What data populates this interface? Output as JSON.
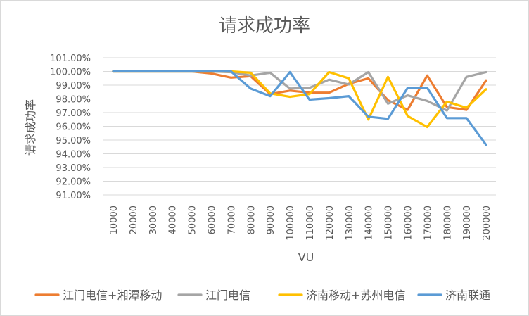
{
  "chart_data": {
    "type": "line",
    "title": "请求成功率",
    "xlabel": "VU",
    "ylabel": "请求成功率",
    "ylim": [
      91,
      101
    ],
    "yticks": [
      "91.00%",
      "92.00%",
      "93.00%",
      "94.00%",
      "95.00%",
      "96.00%",
      "97.00%",
      "98.00%",
      "99.00%",
      "100.00%",
      "101.00%"
    ],
    "grid": true,
    "legend_position": "bottom",
    "categories": [
      "10000",
      "20000",
      "30000",
      "40000",
      "50000",
      "60000",
      "70000",
      "80000",
      "90000",
      "100000",
      "110000",
      "120000",
      "130000",
      "140000",
      "150000",
      "160000",
      "170000",
      "180000",
      "190000",
      "200000"
    ],
    "series": [
      {
        "name": "江门电信+湘潭移动",
        "color": "#ED7D31",
        "values": [
          100,
          100,
          100,
          100,
          100,
          99.85,
          99.55,
          99.65,
          98.35,
          98.6,
          98.45,
          98.45,
          99.1,
          99.5,
          97.9,
          97.2,
          99.7,
          97.4,
          97.2,
          99.35
        ]
      },
      {
        "name": "江门电信",
        "color": "#A5A5A5",
        "values": [
          100,
          100,
          100,
          100,
          100,
          100,
          99.95,
          99.7,
          99.9,
          98.75,
          98.8,
          99.4,
          99.05,
          99.95,
          97.65,
          98.25,
          97.85,
          97.15,
          99.6,
          99.95
        ]
      },
      {
        "name": "济南移动+苏州电信",
        "color": "#FFC000",
        "values": [
          100,
          100,
          100,
          100,
          100,
          100,
          100,
          99.9,
          98.4,
          98.15,
          98.35,
          99.95,
          99.5,
          96.5,
          99.6,
          96.75,
          95.95,
          97.8,
          97.35,
          98.7
        ]
      },
      {
        "name": "济南联通",
        "color": "#5B9BD5",
        "values": [
          100,
          100,
          100,
          100,
          100,
          100,
          100,
          98.75,
          98.2,
          99.95,
          97.95,
          98.05,
          98.2,
          96.7,
          96.55,
          98.8,
          98.8,
          96.6,
          96.6,
          94.65
        ]
      }
    ]
  }
}
